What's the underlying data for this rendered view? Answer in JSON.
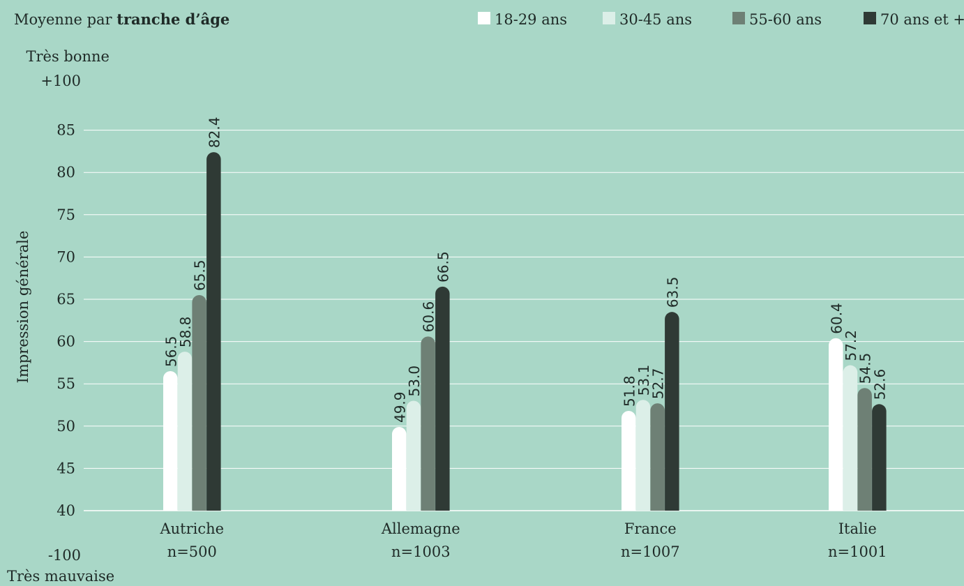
{
  "header": {
    "title_prefix": "Moyenne par ",
    "title_bold": "tranche d’âge"
  },
  "colors": {
    "background": "#a9d7c7",
    "grid": "#ffffff",
    "text": "#1f2a27"
  },
  "chart_data": {
    "type": "bar",
    "ylabel": "Impression générale",
    "y_top_label": "Très bonne",
    "y_top_value_label": "+100",
    "y_bottom_label": "Très mauvaise",
    "y_bottom_value_label": "-100",
    "ylim": [
      40,
      88
    ],
    "yticks": [
      40,
      45,
      50,
      55,
      60,
      65,
      70,
      75,
      80,
      85
    ],
    "grid": true,
    "legend_position": "top-right",
    "categories": [
      "Autriche",
      "Allemagne",
      "France",
      "Italie"
    ],
    "category_sublabels": [
      "n=500",
      "n=1003",
      "n=1007",
      "n=1001"
    ],
    "series": [
      {
        "name": "18-29 ans",
        "color": "#ffffff",
        "values": [
          56.5,
          49.9,
          51.8,
          60.4
        ],
        "labels": [
          "56.5",
          "49.9",
          "51.8",
          "60.4"
        ]
      },
      {
        "name": "30-45 ans",
        "color": "#dcefe8",
        "values": [
          58.8,
          53.0,
          53.1,
          57.2
        ],
        "labels": [
          "58.8",
          "53.0",
          "53.1",
          "57.2"
        ]
      },
      {
        "name": "55-60 ans",
        "color": "#6e8075",
        "values": [
          65.5,
          60.6,
          52.7,
          54.5
        ],
        "labels": [
          "65.5",
          "60.6",
          "52.7",
          "54.5"
        ]
      },
      {
        "name": "70 ans et +",
        "color": "#2f3a35",
        "values": [
          82.4,
          66.5,
          63.5,
          52.6
        ],
        "labels": [
          "82.4",
          "66.5",
          "63.5",
          "52.6"
        ]
      }
    ]
  }
}
